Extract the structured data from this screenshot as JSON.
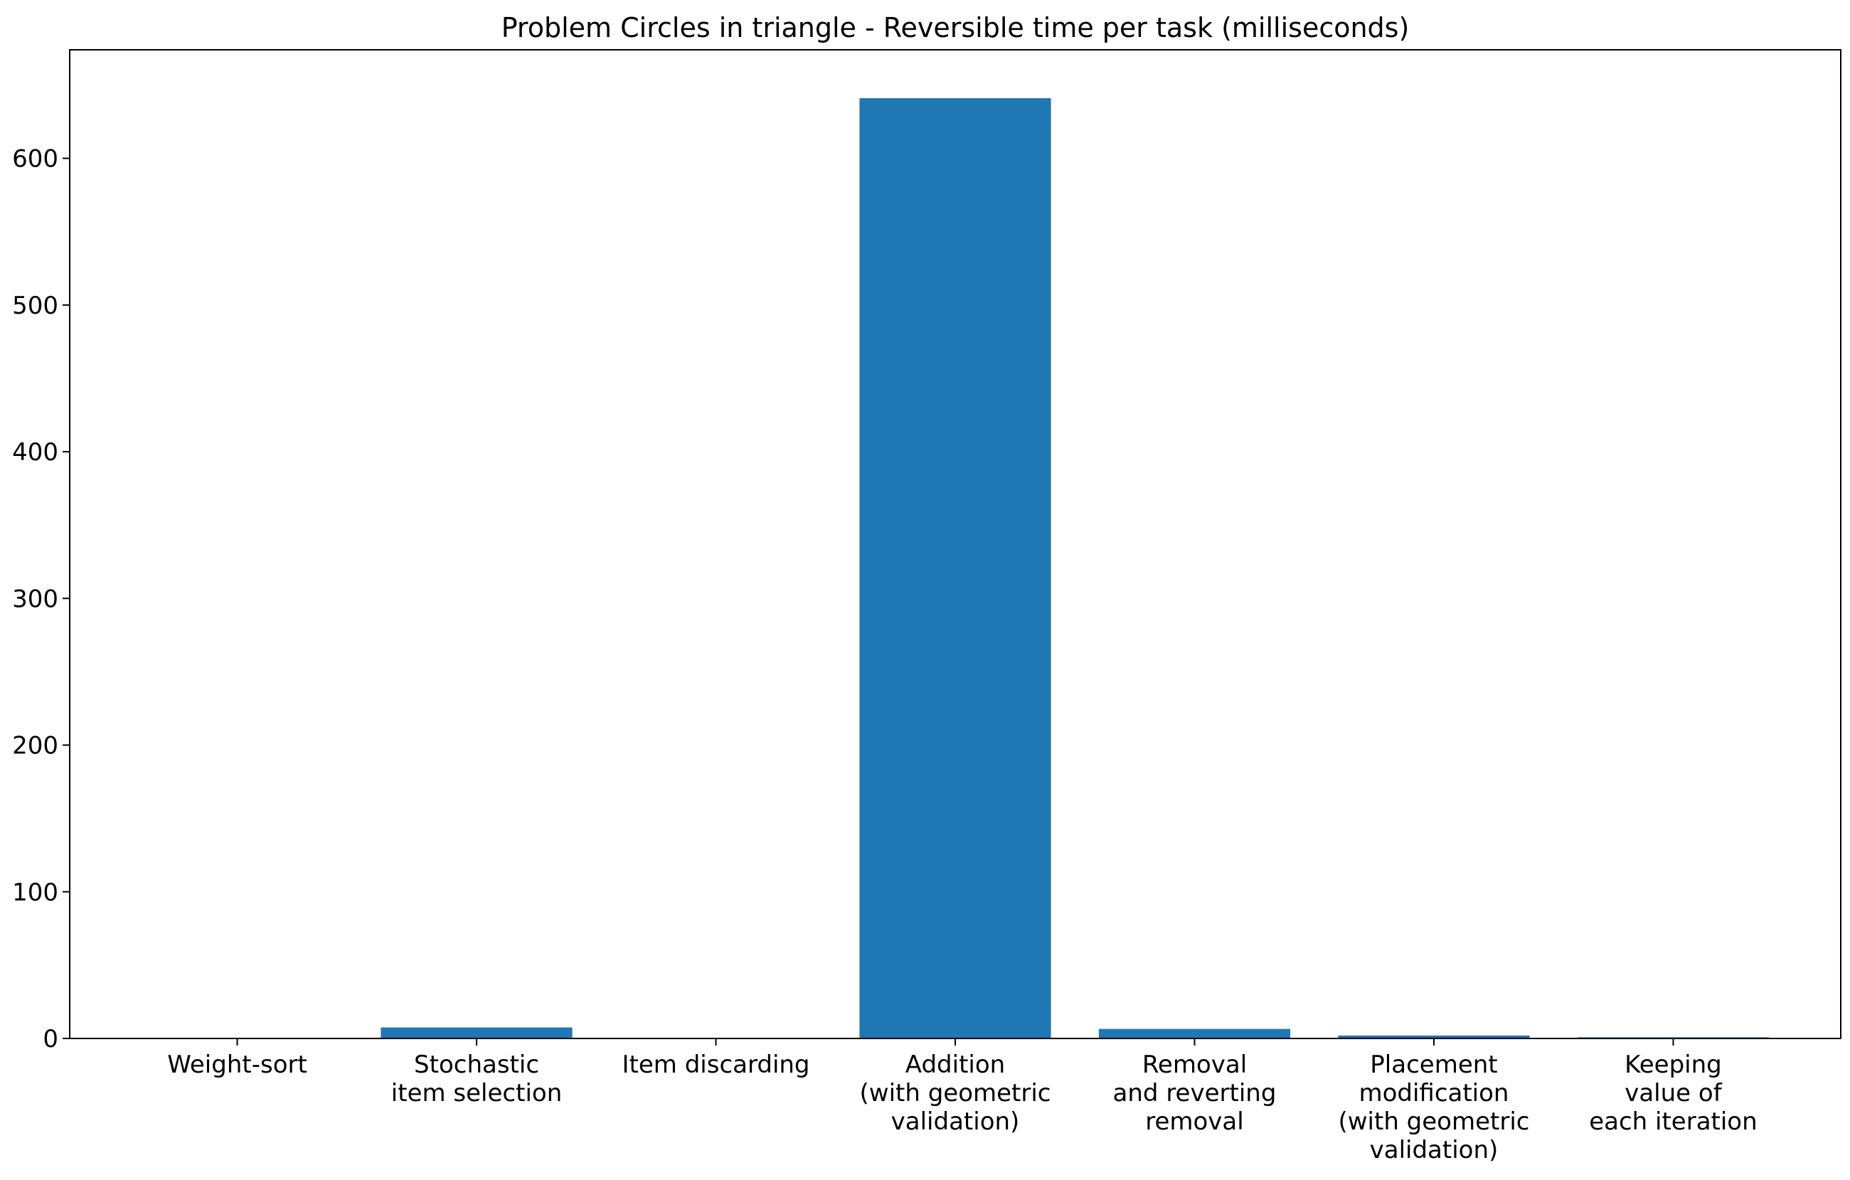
{
  "chart_data": {
    "type": "bar",
    "title": "Problem Circles in triangle - Reversible time per task (milliseconds)",
    "xlabel": "",
    "ylabel": "",
    "categories": [
      [
        "Weight-sort"
      ],
      [
        "Stochastic",
        "item selection"
      ],
      [
        "Item discarding"
      ],
      [
        "Addition",
        "(with geometric",
        "validation)"
      ],
      [
        "Removal",
        "and reverting",
        "removal"
      ],
      [
        "Placement",
        "modification",
        "(with geometric",
        "validation)"
      ],
      [
        "Keeping",
        "value of",
        "each iteration"
      ]
    ],
    "values": [
      0.3,
      7.5,
      0.2,
      641,
      6.5,
      2.0,
      0.8
    ],
    "ylim": [
      0,
      674
    ],
    "yticks": [
      0,
      100,
      200,
      300,
      400,
      500,
      600
    ],
    "bar_color": "#1f77b4",
    "grid": false,
    "legend": "none"
  }
}
